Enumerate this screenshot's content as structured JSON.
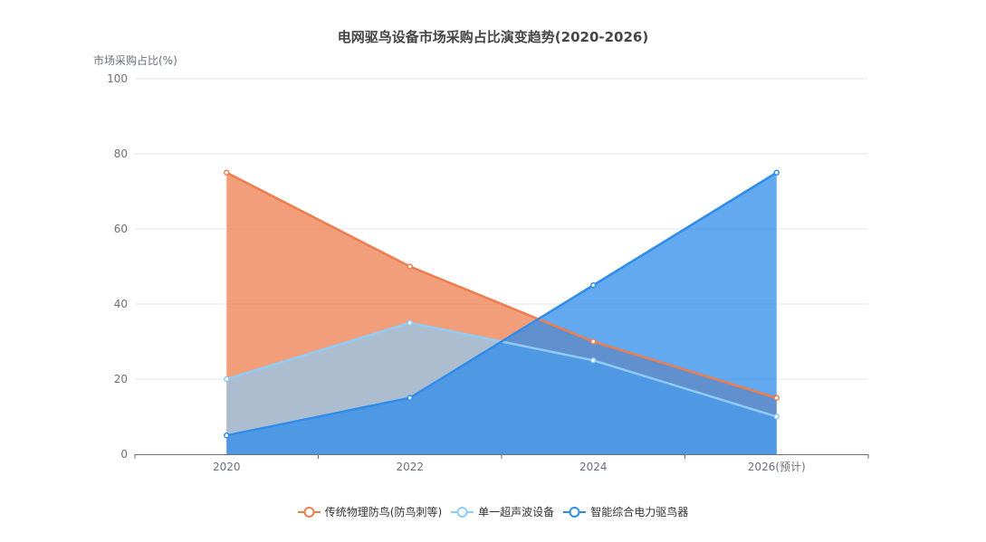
{
  "chart_data": {
    "type": "area",
    "title": "电网驱鸟设备市场采购占比演变趋势(2020-2026)",
    "xlabel": "",
    "ylabel": "市场采购占比(%)",
    "ylim": [
      0,
      100
    ],
    "yticks": [
      0,
      20,
      40,
      60,
      80,
      100
    ],
    "categories": [
      "2020",
      "2022",
      "2024",
      "2026(预计)"
    ],
    "grid": true,
    "legend_position": "bottom",
    "series": [
      {
        "name": "传统物理防鸟(防鸟刺等)",
        "values": [
          75,
          50,
          30,
          15
        ],
        "color": "#EE7D4E",
        "fill": "#F3A17D"
      },
      {
        "name": "单一超声波设备",
        "values": [
          20,
          35,
          25,
          10
        ],
        "color": "#8FCBF5",
        "fill": "#A9BCD8"
      },
      {
        "name": "智能综合电力驱鸟器",
        "values": [
          5,
          15,
          45,
          75
        ],
        "color": "#2F8CEB",
        "fill": "#4A9EF2"
      }
    ]
  },
  "title": "电网驱鸟设备市场采购占比演变趋势(2020-2026)",
  "y_axis_label": "市场采购占比(%)",
  "legend": [
    {
      "label": "传统物理防鸟(防鸟刺等)",
      "color": "#EE7D4E"
    },
    {
      "label": "单一超声波设备",
      "color": "#8FCBF5"
    },
    {
      "label": "智能综合电力驱鸟器",
      "color": "#2F8CEB"
    }
  ]
}
